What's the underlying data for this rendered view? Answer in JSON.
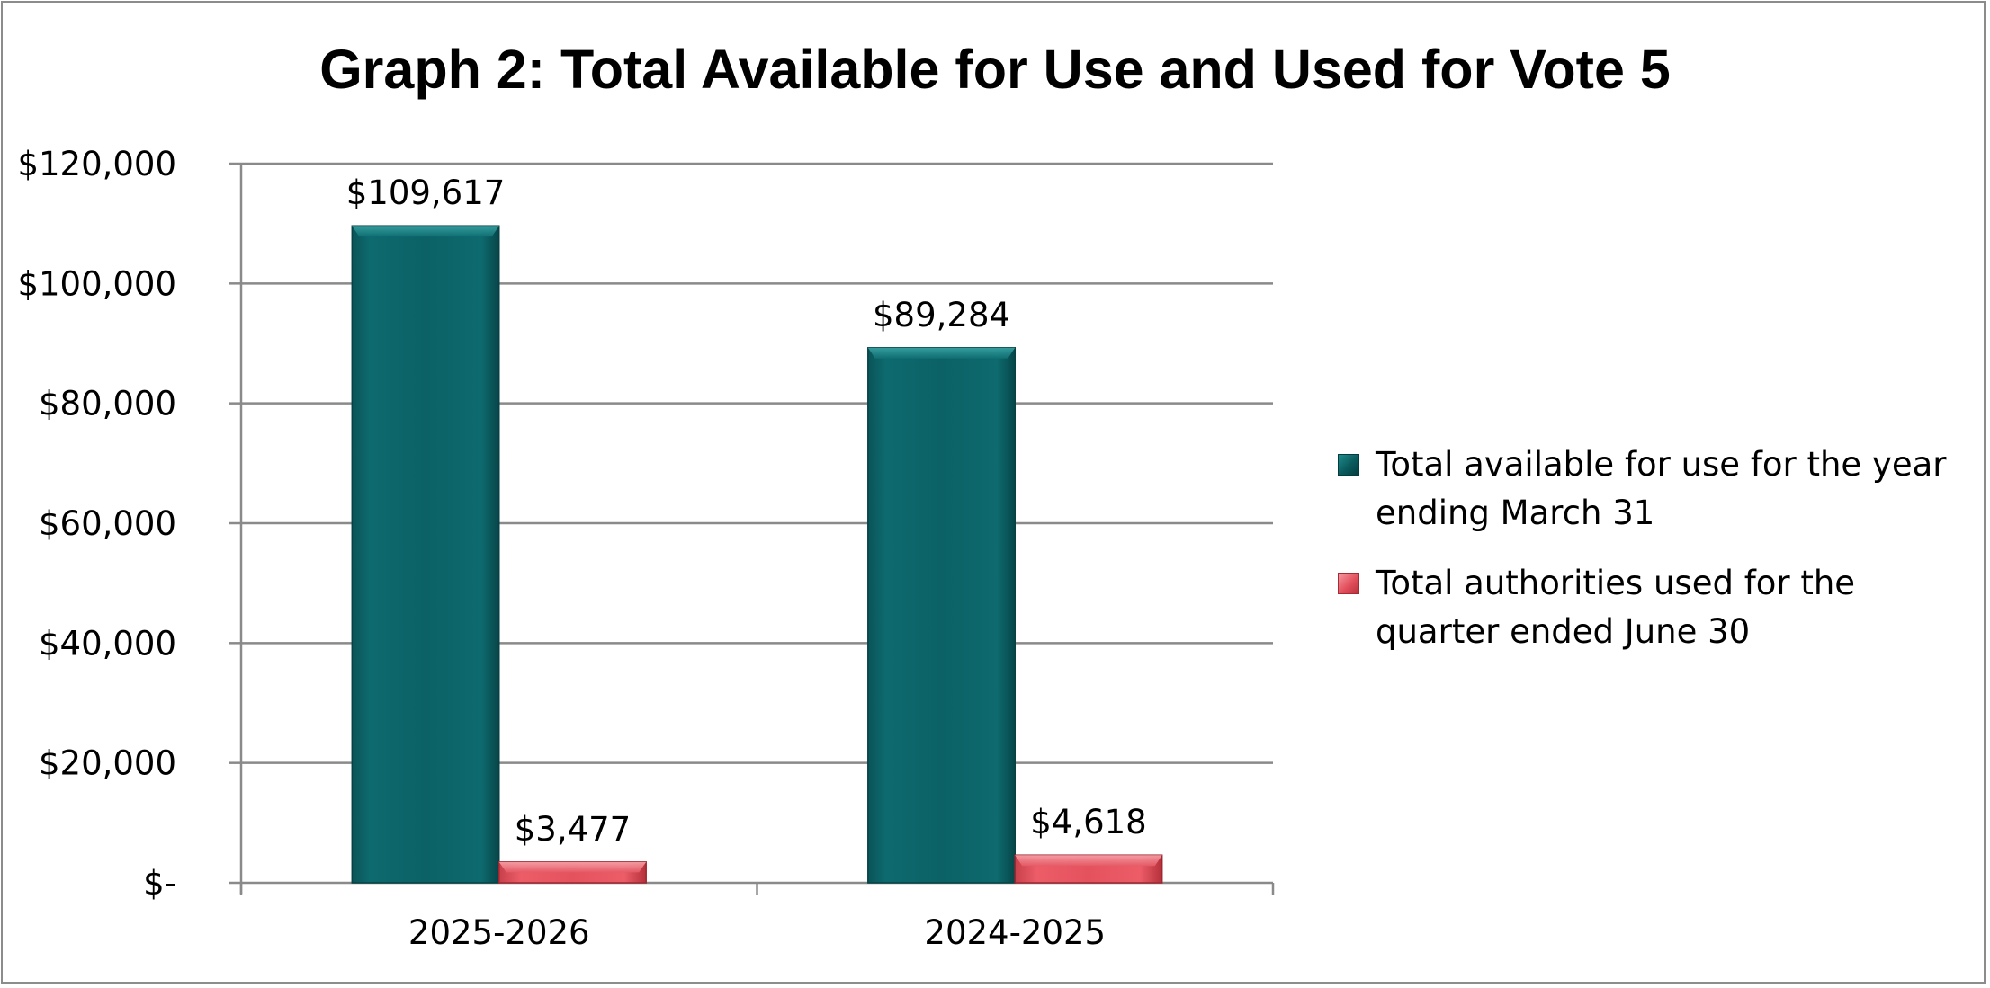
{
  "chart_data": {
    "type": "bar",
    "title": "Graph 2: Total Available for Use and Used for Vote 5",
    "categories": [
      "2025-2026",
      "2024-2025"
    ],
    "series": [
      {
        "name": "Total available for use for the year ending March 31",
        "values": [
          109617,
          89284
        ],
        "labels": [
          "$109,617",
          "$89,284"
        ],
        "color": "#0b6166"
      },
      {
        "name": "Total authorities used for the quarter ended June 30",
        "values": [
          3477,
          4618
        ],
        "labels": [
          "$3,477",
          "$4,618"
        ],
        "color": "#e2505c"
      }
    ],
    "ylim": [
      0,
      120000
    ],
    "yticks": [
      0,
      20000,
      40000,
      60000,
      80000,
      100000,
      120000
    ],
    "ytick_labels": [
      "$-",
      "$20,000",
      "$40,000",
      "$60,000",
      "$80,000",
      "$100,000",
      "$120,000"
    ],
    "xlabel": "",
    "ylabel": "",
    "grid": true,
    "legend_position": "right"
  },
  "legend": {
    "items": [
      "Total available for use for the year ending March 31",
      "Total authorities used for the quarter ended June 30"
    ]
  }
}
